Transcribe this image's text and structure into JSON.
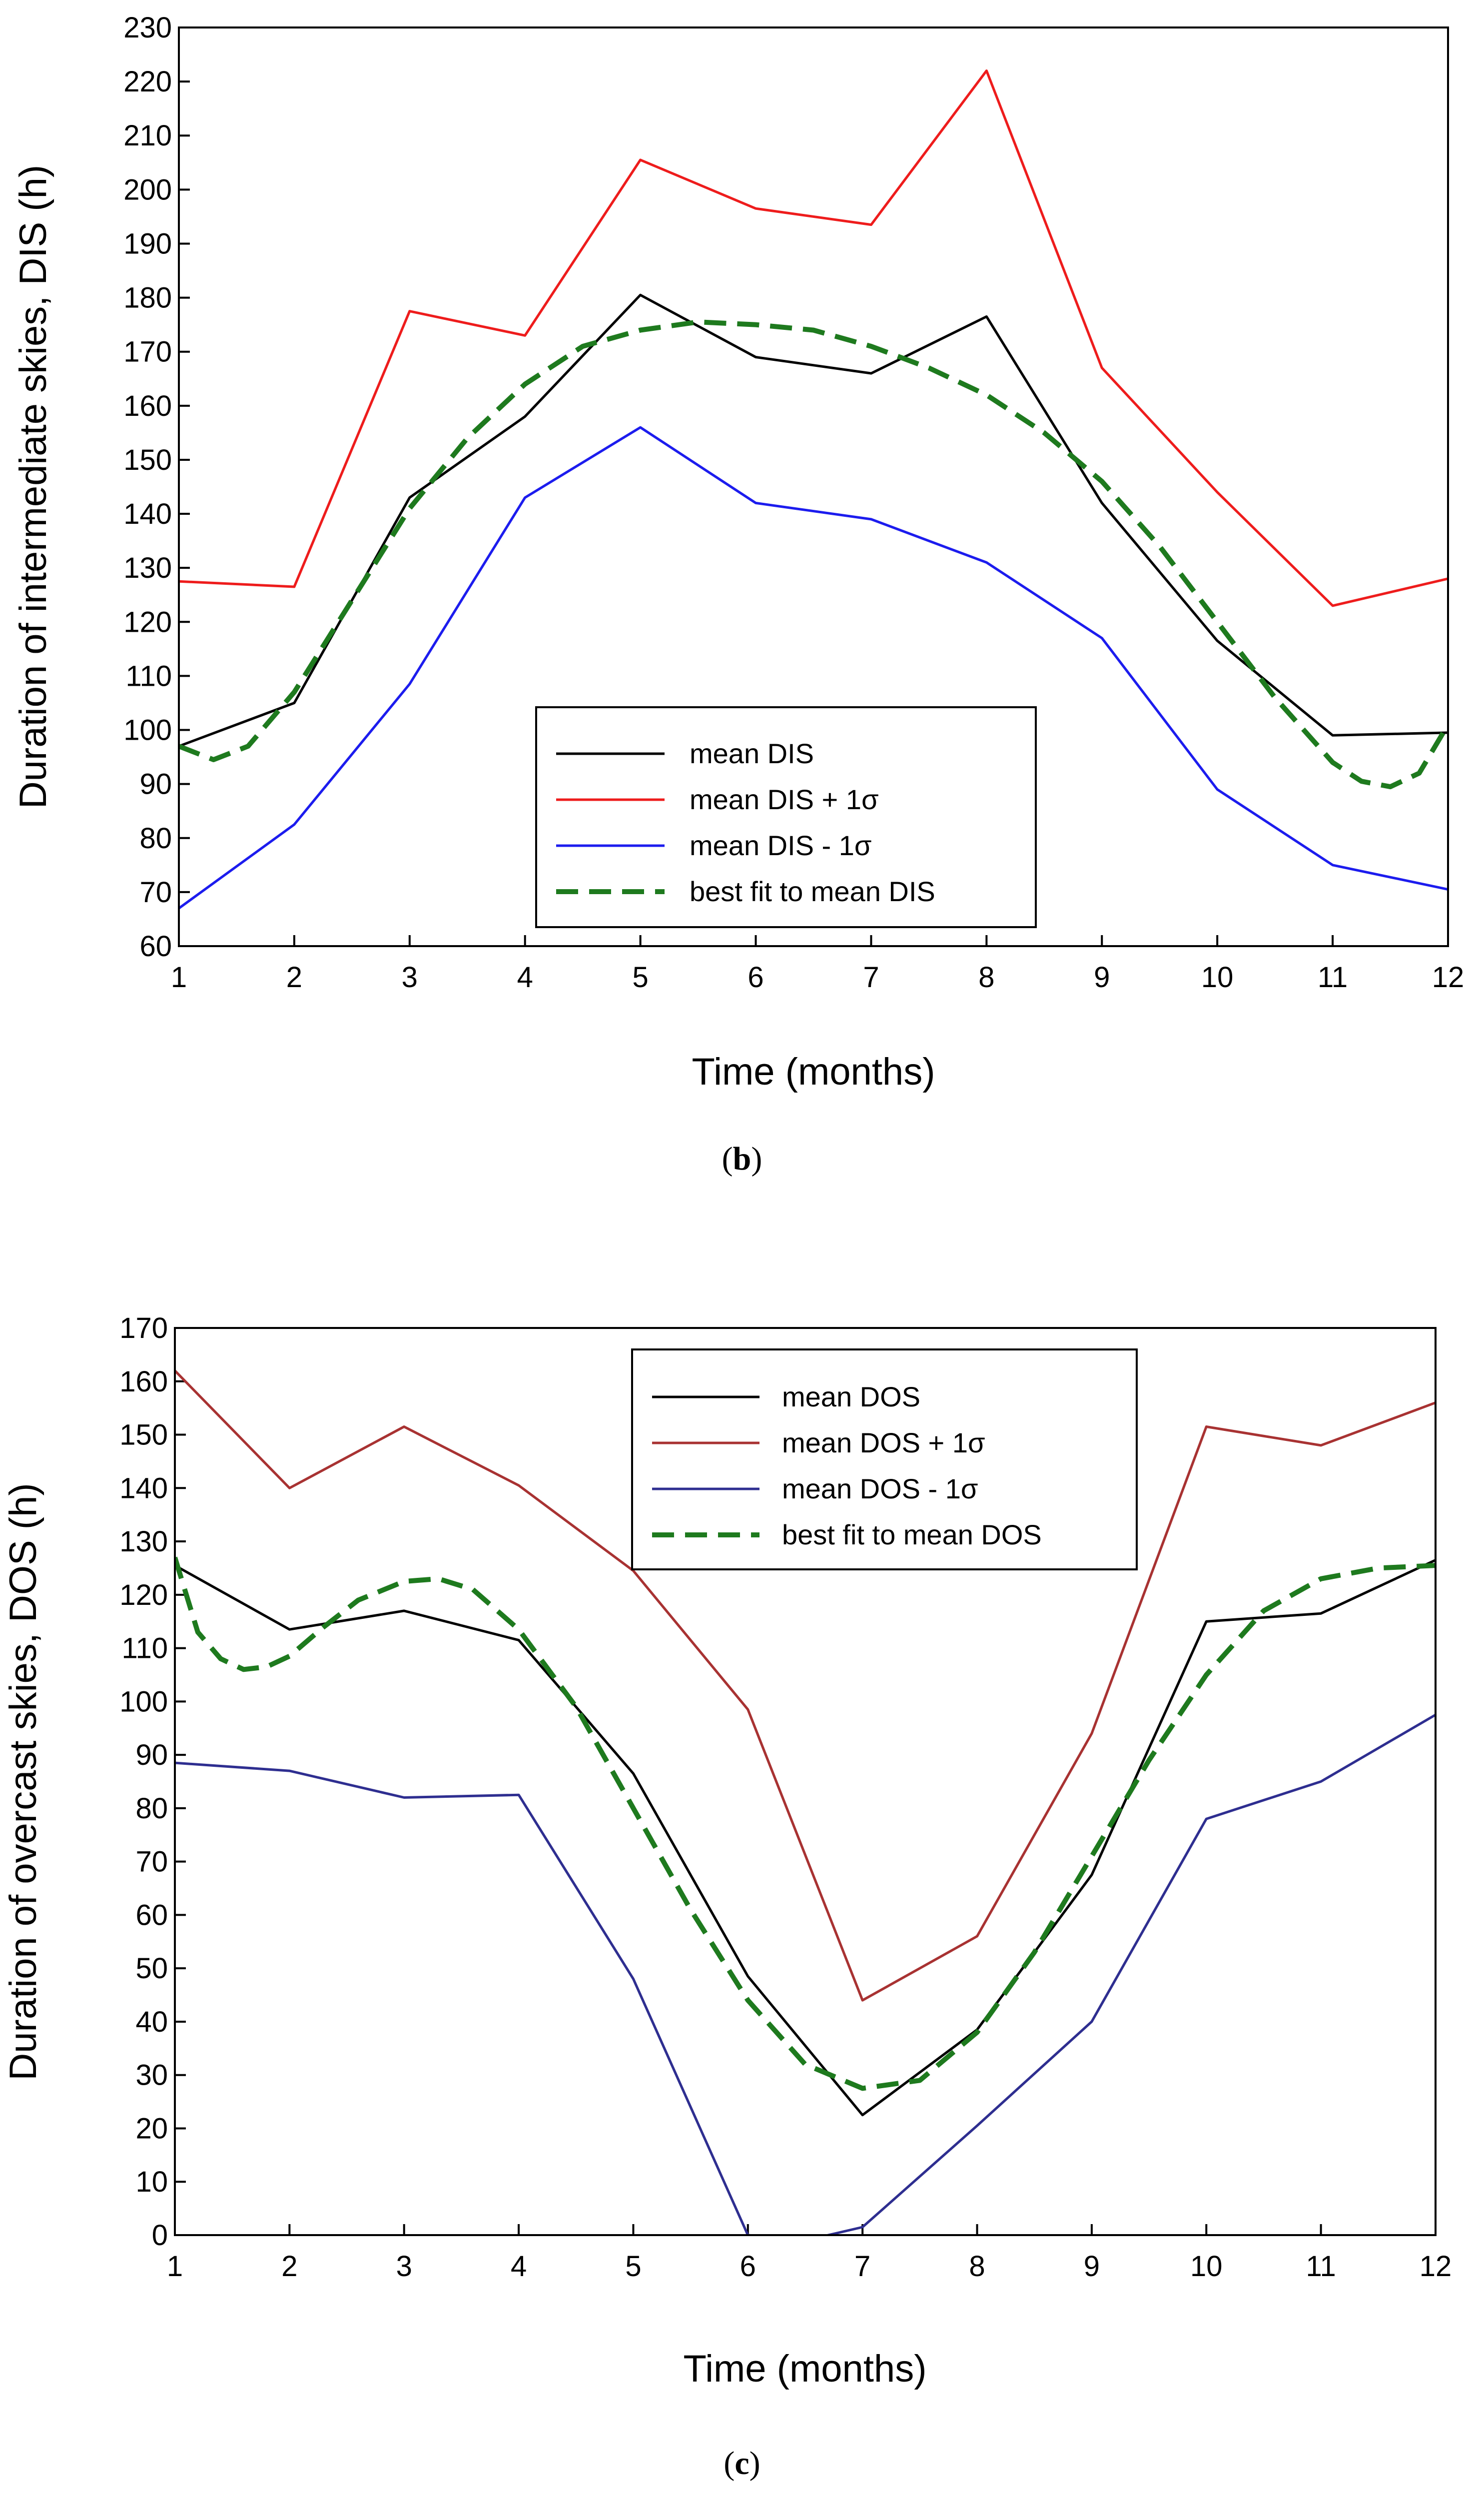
{
  "chart_data": [
    {
      "type": "line",
      "caption_letter": "b",
      "x": [
        1,
        2,
        3,
        4,
        5,
        6,
        7,
        8,
        9,
        10,
        11,
        12
      ],
      "xlabel": "Time (months)",
      "ylabel": "Duration of intermediate skies, DIS (h)",
      "xlim": [
        1,
        12
      ],
      "ylim": [
        60,
        230
      ],
      "xticks": [
        "1",
        "2",
        "3",
        "4",
        "5",
        "6",
        "7",
        "8",
        "9",
        "10",
        "11",
        "12"
      ],
      "yticks": [
        "60",
        "70",
        "80",
        "90",
        "100",
        "110",
        "120",
        "130",
        "140",
        "150",
        "160",
        "170",
        "180",
        "190",
        "200",
        "210",
        "220",
        "230"
      ],
      "legend_position": "bottom-center",
      "series": [
        {
          "name": "mean DIS",
          "color": "#000000",
          "style": "solid",
          "values": [
            97,
            105,
            143,
            158,
            180.5,
            169,
            166,
            176.5,
            142,
            116.5,
            99,
            99.5
          ]
        },
        {
          "name": "mean DIS + 1σ",
          "color": "#ee1c1c",
          "style": "solid",
          "values": [
            127.5,
            126.5,
            177.5,
            173,
            205.5,
            196.5,
            193.5,
            222,
            167,
            144,
            123,
            128
          ]
        },
        {
          "name": "mean DIS - 1σ",
          "color": "#1c1cee",
          "style": "solid",
          "values": [
            67,
            82.5,
            108.5,
            143,
            156,
            142,
            139,
            131,
            117,
            89,
            75,
            70.5
          ]
        },
        {
          "name": "best fit to mean DIS",
          "color": "#1e7a1e",
          "style": "dashed",
          "x": [
            1,
            1.3,
            1.6,
            2,
            2.5,
            3,
            3.5,
            4,
            4.5,
            5,
            5.5,
            6,
            6.5,
            7,
            7.5,
            8,
            8.5,
            9,
            9.5,
            10,
            10.5,
            11,
            11.25,
            11.5,
            11.75,
            12
          ],
          "values": [
            97,
            94.5,
            97,
            107,
            124,
            141,
            154,
            164,
            171,
            174,
            175.5,
            175,
            174,
            171,
            167,
            162,
            155,
            146,
            134,
            120,
            106,
            94,
            90.5,
            89.5,
            92,
            101
          ]
        }
      ]
    },
    {
      "type": "line",
      "caption_letter": "c",
      "x": [
        1,
        2,
        3,
        4,
        5,
        6,
        7,
        8,
        9,
        10,
        11,
        12
      ],
      "xlabel": "Time (months)",
      "ylabel": "Duration of overcast skies, DOS (h)",
      "xlim": [
        1,
        12
      ],
      "ylim": [
        0,
        170
      ],
      "xticks": [
        "1",
        "2",
        "3",
        "4",
        "5",
        "6",
        "7",
        "8",
        "9",
        "10",
        "11",
        "12"
      ],
      "yticks": [
        "0",
        "10",
        "20",
        "30",
        "40",
        "50",
        "60",
        "70",
        "80",
        "90",
        "100",
        "110",
        "120",
        "130",
        "140",
        "150",
        "160",
        "170"
      ],
      "legend_position": "top-center",
      "series": [
        {
          "name": "mean DOS",
          "color": "#000000",
          "style": "solid",
          "values": [
            125.5,
            113.5,
            117,
            111.5,
            86.5,
            48.5,
            22.5,
            38.5,
            67.5,
            115,
            116.5,
            126.5
          ]
        },
        {
          "name": "mean DOS + 1σ",
          "color": "#a83232",
          "style": "solid",
          "values": [
            162,
            140,
            151.5,
            140.5,
            124.5,
            98.5,
            44,
            56,
            94,
            151.5,
            148,
            156
          ]
        },
        {
          "name": "mean DOS - 1σ",
          "color": "#2e2e90",
          "style": "solid",
          "x": [
            1,
            2,
            3,
            4,
            5,
            6,
            6.5,
            7,
            8,
            9,
            10,
            11,
            12
          ],
          "values": [
            88.5,
            87,
            82,
            82.5,
            48,
            0,
            -1,
            1.5,
            20.5,
            40,
            78,
            85,
            97.5
          ]
        },
        {
          "name": "best fit to mean DOS",
          "color": "#1e7a1e",
          "style": "dashed",
          "x": [
            1,
            1.2,
            1.4,
            1.6,
            1.8,
            2,
            2.3,
            2.6,
            3,
            3.3,
            3.6,
            4,
            4.5,
            5,
            5.5,
            6,
            6.5,
            7,
            7.5,
            8,
            8.5,
            9,
            9.5,
            10,
            10.5,
            11,
            11.5,
            12
          ],
          "values": [
            127,
            113,
            108,
            106,
            106.5,
            108.5,
            114,
            119,
            122.5,
            123,
            121,
            113.5,
            99,
            80,
            61,
            44,
            32,
            27.5,
            29,
            38,
            53,
            71,
            89,
            105,
            117,
            123,
            125,
            125.5
          ]
        }
      ]
    }
  ]
}
